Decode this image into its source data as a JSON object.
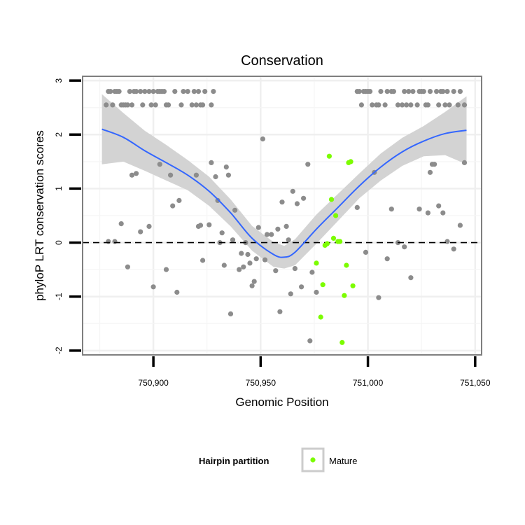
{
  "chart_data": {
    "type": "scatter",
    "title": "Conservation",
    "xlabel": "Genomic Position",
    "ylabel": "phyloP LRT conservation scores",
    "xlim": [
      750867,
      751053
    ],
    "ylim": [
      -2.08,
      3.08
    ],
    "x_ticks": [
      {
        "value": 750900,
        "label": "750,900"
      },
      {
        "value": 750950,
        "label": "750,950"
      },
      {
        "value": 751000,
        "label": "751,000"
      },
      {
        "value": 751050,
        "label": "751,050"
      }
    ],
    "y_ticks": [
      {
        "value": -2,
        "label": "-2"
      },
      {
        "value": -1,
        "label": "-1"
      },
      {
        "value": 0,
        "label": "0"
      },
      {
        "value": 1,
        "label": "1"
      },
      {
        "value": 2,
        "label": "2"
      },
      {
        "value": 3,
        "label": "3"
      }
    ],
    "reference_line": {
      "y": 0,
      "style": "dashed"
    },
    "grid": true,
    "colors": {
      "other": "#8c8c8c",
      "mature": "#7cfc00",
      "smooth": "#3366ff",
      "ribbon": "#d3d3d3"
    },
    "legend": {
      "title": "Hairpin partition",
      "placement": "bottom",
      "entries": [
        {
          "label": "Mature",
          "color": "#7cfc00"
        }
      ]
    },
    "series": [
      {
        "group": "other",
        "points": [
          [
            750878,
            2.55
          ],
          [
            750879,
            2.8
          ],
          [
            750880,
            2.8
          ],
          [
            750881,
            2.55
          ],
          [
            750882,
            2.8
          ],
          [
            750883,
            2.8
          ],
          [
            750884,
            2.8
          ],
          [
            750885,
            2.55
          ],
          [
            750886,
            2.55
          ],
          [
            750887,
            2.55
          ],
          [
            750888,
            2.55
          ],
          [
            750889,
            2.8
          ],
          [
            750890,
            2.55
          ],
          [
            750891,
            2.8
          ],
          [
            750892,
            2.8
          ],
          [
            750894,
            2.8
          ],
          [
            750895,
            2.55
          ],
          [
            750896,
            2.8
          ],
          [
            750898,
            2.8
          ],
          [
            750899,
            2.55
          ],
          [
            750900,
            2.8
          ],
          [
            750901,
            2.55
          ],
          [
            750902,
            2.8
          ],
          [
            750903,
            2.8
          ],
          [
            750904,
            2.8
          ],
          [
            750905,
            2.8
          ],
          [
            750906,
            2.55
          ],
          [
            750907,
            2.55
          ],
          [
            750910,
            2.8
          ],
          [
            750913,
            2.55
          ],
          [
            750914,
            2.8
          ],
          [
            750916,
            2.8
          ],
          [
            750918,
            2.55
          ],
          [
            750919,
            2.8
          ],
          [
            750920,
            2.55
          ],
          [
            750921,
            2.8
          ],
          [
            750922,
            2.55
          ],
          [
            750923,
            2.55
          ],
          [
            750924,
            2.8
          ],
          [
            750927,
            2.55
          ],
          [
            750928,
            2.8
          ],
          [
            750995,
            2.8
          ],
          [
            750996,
            2.8
          ],
          [
            750997,
            2.55
          ],
          [
            750998,
            2.8
          ],
          [
            750999,
            2.8
          ],
          [
            751000,
            2.8
          ],
          [
            751001,
            2.8
          ],
          [
            751002,
            2.55
          ],
          [
            751004,
            2.55
          ],
          [
            751005,
            2.55
          ],
          [
            751006,
            2.8
          ],
          [
            751008,
            2.55
          ],
          [
            751009,
            2.8
          ],
          [
            751011,
            2.8
          ],
          [
            751012,
            2.8
          ],
          [
            751014,
            2.55
          ],
          [
            751016,
            2.55
          ],
          [
            751017,
            2.8
          ],
          [
            751018,
            2.55
          ],
          [
            751019,
            2.8
          ],
          [
            751020,
            2.55
          ],
          [
            751021,
            2.8
          ],
          [
            751023,
            2.55
          ],
          [
            751024,
            2.8
          ],
          [
            751025,
            2.8
          ],
          [
            751026,
            2.8
          ],
          [
            751027,
            2.55
          ],
          [
            751028,
            2.55
          ],
          [
            751029,
            2.8
          ],
          [
            751032,
            2.8
          ],
          [
            751033,
            2.55
          ],
          [
            751034,
            2.8
          ],
          [
            751035,
            2.8
          ],
          [
            751036,
            2.55
          ],
          [
            751037,
            2.8
          ],
          [
            751038,
            2.55
          ],
          [
            751040,
            2.8
          ],
          [
            751042,
            2.55
          ],
          [
            751043,
            2.8
          ],
          [
            751045,
            2.55
          ],
          [
            750879,
            0.02
          ],
          [
            750882,
            0.02
          ],
          [
            750885,
            0.35
          ],
          [
            750888,
            -0.45
          ],
          [
            750890,
            1.25
          ],
          [
            750892,
            1.28
          ],
          [
            750894,
            0.2
          ],
          [
            750898,
            0.3
          ],
          [
            750900,
            -0.82
          ],
          [
            750903,
            1.45
          ],
          [
            750906,
            -0.5
          ],
          [
            750908,
            1.25
          ],
          [
            750909,
            0.68
          ],
          [
            750911,
            -0.92
          ],
          [
            750912,
            0.78
          ],
          [
            750920,
            1.25
          ],
          [
            750921,
            0.3
          ],
          [
            750922,
            0.32
          ],
          [
            750923,
            -0.33
          ],
          [
            750926,
            0.33
          ],
          [
            750927,
            1.48
          ],
          [
            750929,
            1.22
          ],
          [
            750930,
            0.78
          ],
          [
            750931,
            0.0
          ],
          [
            750932,
            0.18
          ],
          [
            750933,
            -0.42
          ],
          [
            750934,
            1.4
          ],
          [
            750935,
            1.25
          ],
          [
            750936,
            -1.32
          ],
          [
            750937,
            0.05
          ],
          [
            750938,
            0.6
          ],
          [
            750940,
            -0.5
          ],
          [
            750941,
            -0.2
          ],
          [
            750942,
            -0.45
          ],
          [
            750943,
            0.0
          ],
          [
            750944,
            -0.22
          ],
          [
            750945,
            -0.38
          ],
          [
            750946,
            -0.8
          ],
          [
            750947,
            -0.72
          ],
          [
            750948,
            -0.3
          ],
          [
            750949,
            0.28
          ],
          [
            750951,
            1.92
          ],
          [
            750952,
            -0.32
          ],
          [
            750953,
            0.15
          ],
          [
            750955,
            0.15
          ],
          [
            750957,
            -0.52
          ],
          [
            750958,
            0.25
          ],
          [
            750959,
            -1.28
          ],
          [
            750960,
            0.75
          ],
          [
            750962,
            0.3
          ],
          [
            750963,
            0.05
          ],
          [
            750964,
            -0.95
          ],
          [
            750965,
            0.95
          ],
          [
            750966,
            -0.48
          ],
          [
            750967,
            0.72
          ],
          [
            750969,
            -0.82
          ],
          [
            750970,
            0.82
          ],
          [
            750972,
            1.45
          ],
          [
            750973,
            -1.82
          ],
          [
            750974,
            -0.55
          ],
          [
            750976,
            -0.92
          ],
          [
            750995,
            0.65
          ],
          [
            750999,
            -0.18
          ],
          [
            751003,
            1.3
          ],
          [
            751005,
            -1.02
          ],
          [
            751009,
            -0.3
          ],
          [
            751011,
            0.62
          ],
          [
            751014,
            0.0
          ],
          [
            751017,
            -0.08
          ],
          [
            751020,
            -0.65
          ],
          [
            751024,
            0.62
          ],
          [
            751028,
            0.55
          ],
          [
            751029,
            1.3
          ],
          [
            751030,
            1.45
          ],
          [
            751031,
            1.45
          ],
          [
            751033,
            0.68
          ],
          [
            751035,
            0.55
          ],
          [
            751037,
            0.02
          ],
          [
            751040,
            -0.12
          ],
          [
            751043,
            0.32
          ],
          [
            751045,
            1.48
          ]
        ]
      },
      {
        "group": "mature",
        "name": "Mature",
        "points": [
          [
            750976,
            -0.38
          ],
          [
            750978,
            -1.38
          ],
          [
            750979,
            -0.78
          ],
          [
            750980,
            -0.05
          ],
          [
            750981,
            -0.02
          ],
          [
            750982,
            1.6
          ],
          [
            750983,
            0.8
          ],
          [
            750984,
            0.08
          ],
          [
            750985,
            0.5
          ],
          [
            750986,
            0.02
          ],
          [
            750987,
            0.02
          ],
          [
            750988,
            -1.85
          ],
          [
            750989,
            -0.98
          ],
          [
            750990,
            -0.42
          ],
          [
            750991,
            1.48
          ],
          [
            750992,
            1.5
          ],
          [
            750993,
            -0.8
          ]
        ]
      }
    ],
    "smooth": {
      "x": [
        750876,
        750886,
        750896,
        750906,
        750916,
        750926,
        750936,
        750946,
        750956,
        750961,
        750966,
        750976,
        750986,
        750996,
        751006,
        751016,
        751026,
        751036,
        751046
      ],
      "y": [
        2.1,
        1.95,
        1.7,
        1.48,
        1.25,
        0.95,
        0.55,
        0.08,
        -0.22,
        -0.27,
        -0.18,
        0.25,
        0.65,
        1.05,
        1.4,
        1.68,
        1.88,
        2.02,
        2.08
      ],
      "lower": [
        1.45,
        1.5,
        1.33,
        1.15,
        0.97,
        0.68,
        0.3,
        -0.15,
        -0.45,
        -0.48,
        -0.42,
        -0.02,
        0.4,
        0.82,
        1.15,
        1.42,
        1.6,
        1.62,
        1.45
      ],
      "upper": [
        2.75,
        2.4,
        2.07,
        1.81,
        1.53,
        1.22,
        0.8,
        0.31,
        0.01,
        -0.06,
        0.06,
        0.52,
        0.9,
        1.28,
        1.65,
        1.94,
        2.16,
        2.42,
        2.71
      ]
    }
  }
}
